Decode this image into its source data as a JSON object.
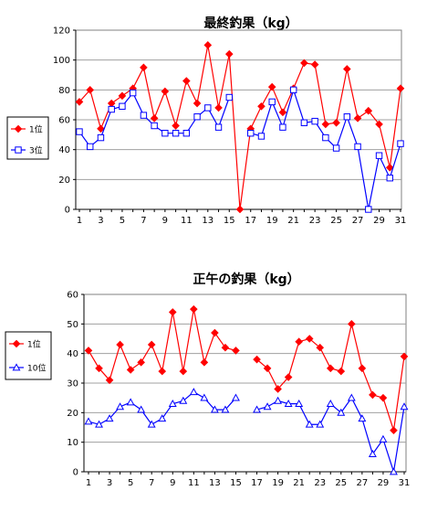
{
  "chart_data": [
    {
      "type": "line",
      "title": "最終釣果（kg）",
      "xlabel": "",
      "ylabel": "",
      "x": [
        1,
        2,
        3,
        4,
        5,
        6,
        7,
        8,
        9,
        10,
        11,
        12,
        13,
        14,
        15,
        16,
        17,
        18,
        19,
        20,
        21,
        22,
        23,
        24,
        25,
        26,
        27,
        28,
        29,
        30,
        31
      ],
      "x_tick_labels": [
        "1",
        "3",
        "5",
        "7",
        "9",
        "11",
        "13",
        "15",
        "17",
        "19",
        "21",
        "23",
        "25",
        "27",
        "29",
        "31"
      ],
      "ylim": [
        0,
        120
      ],
      "y_ticks": [
        "0",
        "20",
        "40",
        "60",
        "80",
        "100",
        "120"
      ],
      "grid": "horizontal",
      "legend_position": "left",
      "series": [
        {
          "name": "1位",
          "color": "#ff0000",
          "marker": "diamond-filled",
          "values": [
            72,
            80,
            54,
            71,
            76,
            81,
            95,
            61,
            79,
            56,
            86,
            71,
            110,
            68,
            104,
            0,
            54,
            69,
            82,
            65,
            81,
            98,
            97,
            57,
            58,
            94,
            61,
            66,
            57,
            28,
            81
          ]
        },
        {
          "name": "3位",
          "color": "#0000ff",
          "marker": "square-open",
          "values": [
            52,
            42,
            48,
            67,
            69,
            78,
            63,
            56,
            51,
            51,
            51,
            62,
            68,
            55,
            75,
            null,
            51,
            49,
            72,
            55,
            80,
            58,
            59,
            48,
            41,
            62,
            42,
            0,
            36,
            21,
            44
          ]
        }
      ]
    },
    {
      "type": "line",
      "title": "正午の釣果（kg）",
      "xlabel": "",
      "ylabel": "",
      "x": [
        1,
        2,
        3,
        4,
        5,
        6,
        7,
        8,
        9,
        10,
        11,
        12,
        13,
        14,
        15,
        16,
        17,
        18,
        19,
        20,
        21,
        22,
        23,
        24,
        25,
        26,
        27,
        28,
        29,
        30,
        31
      ],
      "x_tick_labels": [
        "1",
        "3",
        "5",
        "7",
        "9",
        "11",
        "13",
        "15",
        "17",
        "19",
        "21",
        "23",
        "25",
        "27",
        "29",
        "31"
      ],
      "ylim": [
        0,
        60
      ],
      "y_ticks": [
        "0",
        "10",
        "20",
        "30",
        "40",
        "50",
        "60"
      ],
      "grid": "horizontal",
      "legend_position": "left",
      "series": [
        {
          "name": "1位",
          "color": "#ff0000",
          "marker": "diamond-filled",
          "values": [
            41,
            35,
            31,
            43,
            34.5,
            37,
            43,
            34,
            54,
            34,
            55,
            37,
            47,
            42,
            41,
            null,
            38,
            35,
            28,
            32,
            44,
            45,
            42,
            35,
            34,
            50,
            35,
            26,
            25,
            14,
            39
          ]
        },
        {
          "name": "10位",
          "color": "#0000ff",
          "marker": "triangle-open",
          "values": [
            17,
            16,
            18,
            22,
            23.5,
            21,
            16,
            18,
            23,
            24,
            27,
            25,
            21,
            21,
            25,
            null,
            21,
            22,
            24,
            23,
            23,
            16,
            16,
            23,
            20,
            25,
            18,
            6,
            11,
            0,
            22
          ]
        }
      ]
    }
  ]
}
